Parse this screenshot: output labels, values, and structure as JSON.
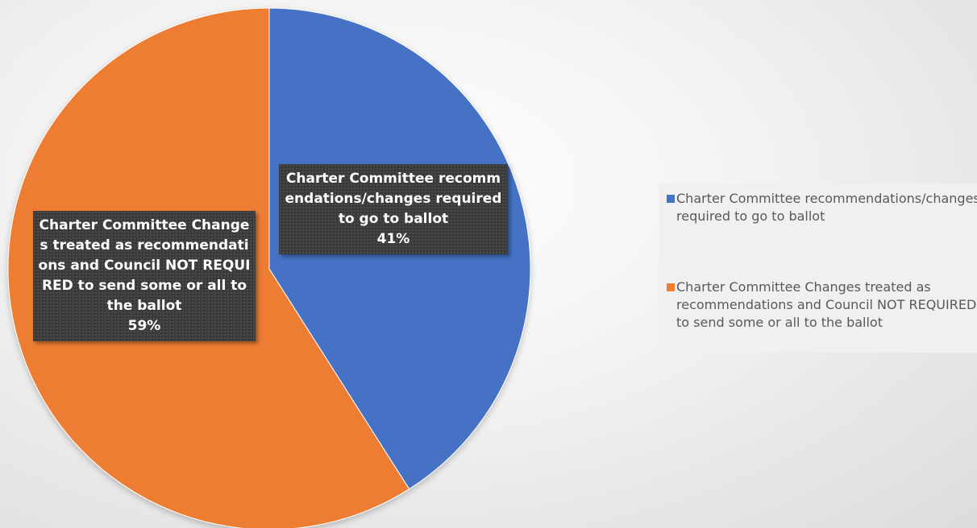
{
  "chart_data": {
    "type": "pie",
    "title": "",
    "legend_position": "right",
    "slices": [
      {
        "label": "Charter Committee recommendations/changes required to go to ballot",
        "value": 41,
        "display_value": "41%",
        "color": "#4472C4"
      },
      {
        "label": "Charter Committee Changes treated as recommendations and Council NOT REQUIRED to send some or all to the ballot",
        "value": 59,
        "display_value": "59%",
        "color": "#ED7D31"
      }
    ]
  },
  "legend": {
    "items": [
      "Charter Committee recommendations/changes required to go to ballot",
      "Charter Committee Changes treated as recommendations and Council NOT REQUIRED to send some or all to the ballot"
    ]
  }
}
